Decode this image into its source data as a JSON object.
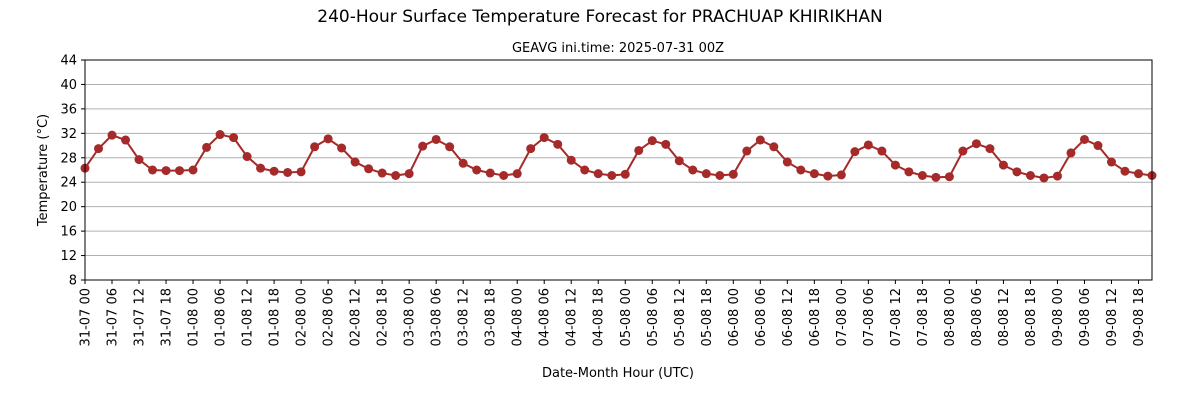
{
  "chart_data": {
    "type": "line",
    "title": "240-Hour Surface Temperature Forecast for PRACHUAP KHIRIKHAN",
    "subtitle": "GEAVG ini.time: 2025-07-31 00Z",
    "xlabel": "Date-Month Hour (UTC)",
    "ylabel": "Temperature (°C)",
    "ylim": [
      8,
      44
    ],
    "yticks": [
      8,
      12,
      16,
      20,
      24,
      28,
      32,
      36,
      40,
      44
    ],
    "grid": true,
    "color": "#a52a2a",
    "x": [
      "31-07 00",
      "31-07 03",
      "31-07 06",
      "31-07 09",
      "31-07 12",
      "31-07 15",
      "31-07 18",
      "31-07 21",
      "01-08 00",
      "01-08 03",
      "01-08 06",
      "01-08 09",
      "01-08 12",
      "01-08 15",
      "01-08 18",
      "01-08 21",
      "02-08 00",
      "02-08 03",
      "02-08 06",
      "02-08 09",
      "02-08 12",
      "02-08 15",
      "02-08 18",
      "02-08 21",
      "03-08 00",
      "03-08 03",
      "03-08 06",
      "03-08 09",
      "03-08 12",
      "03-08 15",
      "03-08 18",
      "03-08 21",
      "04-08 00",
      "04-08 03",
      "04-08 06",
      "04-08 09",
      "04-08 12",
      "04-08 15",
      "04-08 18",
      "04-08 21",
      "05-08 00",
      "05-08 03",
      "05-08 06",
      "05-08 09",
      "05-08 12",
      "05-08 15",
      "05-08 18",
      "05-08 21",
      "06-08 00",
      "06-08 03",
      "06-08 06",
      "06-08 09",
      "06-08 12",
      "06-08 15",
      "06-08 18",
      "06-08 21",
      "07-08 00",
      "07-08 03",
      "07-08 06",
      "07-08 09",
      "07-08 12",
      "07-08 15",
      "07-08 18",
      "07-08 21",
      "08-08 00",
      "08-08 03",
      "08-08 06",
      "08-08 09",
      "08-08 12",
      "08-08 15",
      "08-08 18",
      "08-08 21",
      "09-08 00",
      "09-08 03",
      "09-08 06",
      "09-08 09",
      "09-08 12",
      "09-08 15",
      "09-08 18",
      "09-08 21"
    ],
    "xtick_labels": [
      "31-07 00",
      "31-07 06",
      "31-07 12",
      "31-07 18",
      "01-08 00",
      "01-08 06",
      "01-08 12",
      "01-08 18",
      "02-08 00",
      "02-08 06",
      "02-08 12",
      "02-08 18",
      "03-08 00",
      "03-08 06",
      "03-08 12",
      "03-08 18",
      "04-08 00",
      "04-08 06",
      "04-08 12",
      "04-08 18",
      "05-08 00",
      "05-08 06",
      "05-08 12",
      "05-08 18",
      "06-08 00",
      "06-08 06",
      "06-08 12",
      "06-08 18",
      "07-08 00",
      "07-08 06",
      "07-08 12",
      "07-08 18",
      "08-08 00",
      "08-08 06",
      "08-08 12",
      "08-08 18",
      "09-08 00",
      "09-08 06",
      "09-08 12",
      "09-08 18"
    ],
    "values": [
      26.3,
      29.5,
      31.7,
      30.9,
      27.7,
      26.0,
      25.9,
      25.9,
      26.0,
      29.7,
      31.8,
      31.3,
      28.2,
      26.3,
      25.8,
      25.6,
      25.7,
      29.8,
      31.1,
      29.6,
      27.3,
      26.2,
      25.5,
      25.1,
      25.4,
      29.9,
      31.0,
      29.8,
      27.1,
      26.0,
      25.5,
      25.1,
      25.4,
      29.5,
      31.3,
      30.2,
      27.6,
      26.0,
      25.4,
      25.1,
      25.3,
      29.2,
      30.8,
      30.2,
      27.5,
      26.0,
      25.4,
      25.1,
      25.3,
      29.1,
      30.9,
      29.8,
      27.3,
      26.0,
      25.4,
      25.0,
      25.2,
      29.0,
      30.1,
      29.1,
      26.8,
      25.7,
      25.1,
      24.8,
      24.9,
      29.1,
      30.3,
      29.5,
      26.8,
      25.7,
      25.1,
      24.7,
      25.0,
      28.8,
      31.0,
      30.0,
      27.3,
      25.8,
      25.4,
      25.1
    ]
  }
}
